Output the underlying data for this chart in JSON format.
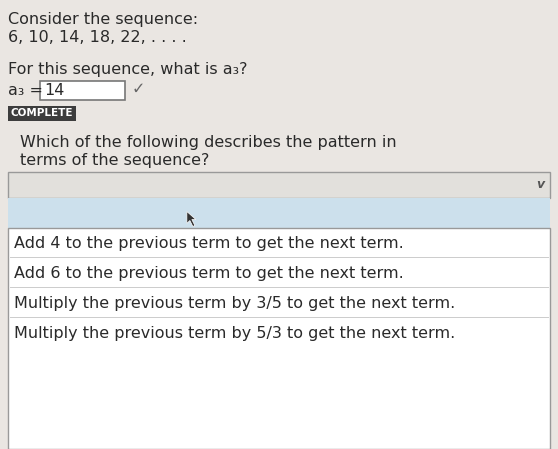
{
  "bg_color": "#e8e4e0",
  "upper_bg": "#eceae6",
  "title_line1": "Consider the sequence:",
  "title_line2": "6, 10, 14, 18, 22, . . . .",
  "question": "For this sequence, what is a₃?",
  "answer_label": "a₃ =",
  "answer_value": "14",
  "checkmark": "✓",
  "complete_label": "COMPLETE",
  "complete_bg": "#3d3d3d",
  "complete_text_color": "#ffffff",
  "dropdown_question_line1": "Which of the following describes the pattern in",
  "dropdown_question_line2": "terms of the sequence?",
  "dropdown_box_color": "#ffffff",
  "dropdown_border_color": "#999999",
  "dropdown_selected_bg": "#cce0ec",
  "dropdown_options": [
    "Add 4 to the previous term to get the next term.",
    "Add 6 to the previous term to get the next term.",
    "Multiply the previous term by 3/5 to get the next term.",
    "Multiply the previous term by 5/3 to get the next term."
  ],
  "font_size_main": 11.5,
  "text_color": "#2a2a2a",
  "separator_color": "#cccccc"
}
